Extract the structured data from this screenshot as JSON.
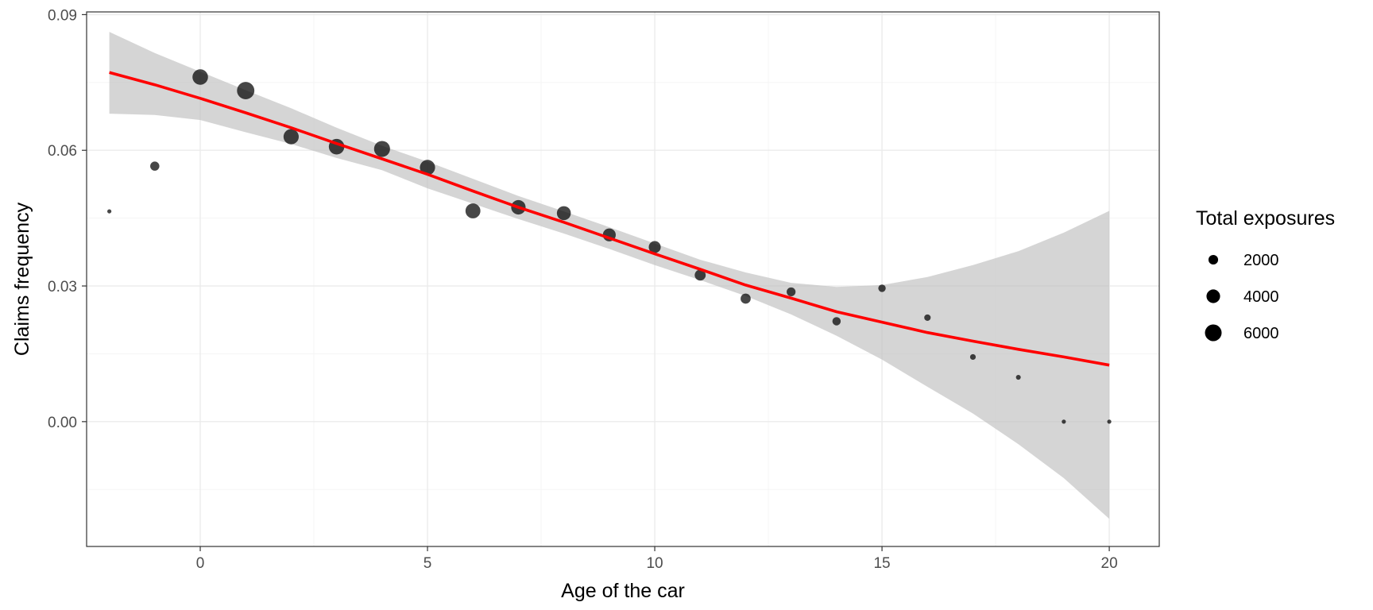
{
  "chart_data": {
    "type": "scatter",
    "title": "",
    "xlabel": "Age of the car",
    "ylabel": "Claims frequency",
    "xlim": [
      -2.5,
      21.1
    ],
    "ylim": [
      -0.0276,
      0.0906
    ],
    "x_ticks": [
      0,
      5,
      10,
      15,
      20
    ],
    "x_tick_labels": [
      "0",
      "5",
      "10",
      "15",
      "20"
    ],
    "y_ticks": [
      0.0,
      0.03,
      0.06,
      0.09
    ],
    "y_tick_labels": [
      "0.00",
      "0.03",
      "0.06",
      "0.09"
    ],
    "grid": true,
    "legend": {
      "title": "Total exposures",
      "placement": "right",
      "entries": [
        {
          "label": "2000",
          "value": 2000
        },
        {
          "label": "4000",
          "value": 4000
        },
        {
          "label": "6000",
          "value": 6000
        }
      ]
    },
    "points": [
      {
        "x": -2,
        "y": 0.0465,
        "exposure": 300
      },
      {
        "x": -1,
        "y": 0.0565,
        "exposure": 1800
      },
      {
        "x": 0,
        "y": 0.0762,
        "exposure": 5200
      },
      {
        "x": 1,
        "y": 0.0732,
        "exposure": 6500
      },
      {
        "x": 2,
        "y": 0.063,
        "exposure": 5000
      },
      {
        "x": 3,
        "y": 0.0608,
        "exposure": 5200
      },
      {
        "x": 4,
        "y": 0.0603,
        "exposure": 5500
      },
      {
        "x": 5,
        "y": 0.0562,
        "exposure": 5000
      },
      {
        "x": 6,
        "y": 0.0466,
        "exposure": 4800
      },
      {
        "x": 7,
        "y": 0.0474,
        "exposure": 4500
      },
      {
        "x": 8,
        "y": 0.0461,
        "exposure": 4200
      },
      {
        "x": 9,
        "y": 0.0413,
        "exposure": 3600
      },
      {
        "x": 10,
        "y": 0.0386,
        "exposure": 3100
      },
      {
        "x": 11,
        "y": 0.0324,
        "exposure": 2600
      },
      {
        "x": 12,
        "y": 0.0272,
        "exposure": 2200
      },
      {
        "x": 13,
        "y": 0.0287,
        "exposure": 1700
      },
      {
        "x": 14,
        "y": 0.0222,
        "exposure": 1500
      },
      {
        "x": 15,
        "y": 0.0295,
        "exposure": 1200
      },
      {
        "x": 16,
        "y": 0.023,
        "exposure": 900
      },
      {
        "x": 17,
        "y": 0.0143,
        "exposure": 700
      },
      {
        "x": 18,
        "y": 0.0098,
        "exposure": 500
      },
      {
        "x": 19,
        "y": 0.0,
        "exposure": 150
      },
      {
        "x": 20,
        "y": 0.0,
        "exposure": 120
      }
    ],
    "smooth_fit": {
      "color": "#ff0000",
      "x": [
        -2,
        -1,
        0,
        1,
        2,
        3,
        4,
        5,
        6,
        7,
        8,
        9,
        10,
        11,
        12,
        13,
        14,
        15,
        16,
        17,
        18,
        19,
        20
      ],
      "y": [
        0.0772,
        0.0745,
        0.0715,
        0.0683,
        0.065,
        0.0615,
        0.0581,
        0.0547,
        0.051,
        0.0474,
        0.0441,
        0.0406,
        0.0371,
        0.0337,
        0.0302,
        0.0273,
        0.0243,
        0.022,
        0.0197,
        0.0178,
        0.016,
        0.0143,
        0.0125
      ],
      "upper": [
        0.0862,
        0.0815,
        0.0774,
        0.0733,
        0.0693,
        0.065,
        0.061,
        0.0575,
        0.0537,
        0.0499,
        0.0465,
        0.043,
        0.0394,
        0.0358,
        0.033,
        0.0307,
        0.0298,
        0.0302,
        0.032,
        0.0346,
        0.0377,
        0.0418,
        0.0466
      ],
      "lower": [
        0.0681,
        0.0678,
        0.0667,
        0.064,
        0.0614,
        0.0583,
        0.0556,
        0.0516,
        0.0482,
        0.0448,
        0.0416,
        0.0382,
        0.0346,
        0.0313,
        0.0278,
        0.0237,
        0.019,
        0.0137,
        0.0077,
        0.0018,
        -0.005,
        -0.0125,
        -0.0215
      ]
    },
    "colors": {
      "point": "#000000",
      "fit_line": "#ff0000",
      "ribbon": "#bfbfbf",
      "grid_major": "#ebebeb",
      "grid_minor": "#f5f5f5",
      "panel_border": "#333333"
    }
  }
}
